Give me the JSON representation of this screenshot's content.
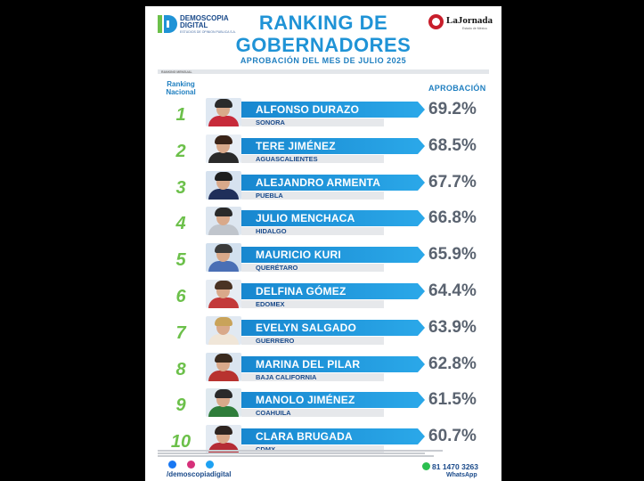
{
  "header": {
    "logo_left_name": "DEMOSCOPIA DIGITAL",
    "logo_left_sub": "ESTUDIOS DE OPINION PUBLICA S.A.",
    "logo_right_name": "LaJornada",
    "logo_right_sub": "Estado de México"
  },
  "chart_data": {
    "type": "bar",
    "title": "RANKING DE GOBERNADORES",
    "title_line1": "RANKING DE",
    "title_line2": "GOBERNADORES",
    "subtitle": "APROBACIÓN DEL MES DE JULIO 2025",
    "small_label": "RANKING MENSUAL",
    "rank_header_line1": "Ranking",
    "rank_header_line2": "Nacional",
    "value_header": "APROBACIÓN",
    "rows": [
      {
        "rank": "1",
        "name": "ALFONSO DURAZO",
        "state": "SONORA",
        "value": 69.2,
        "label": "69.2%"
      },
      {
        "rank": "2",
        "name": "TERE JIMÉNEZ",
        "state": "AGUASCALIENTES",
        "value": 68.5,
        "label": "68.5%"
      },
      {
        "rank": "3",
        "name": "ALEJANDRO ARMENTA",
        "state": "PUEBLA",
        "value": 67.7,
        "label": "67.7%"
      },
      {
        "rank": "4",
        "name": "JULIO MENCHACA",
        "state": "HIDALGO",
        "value": 66.8,
        "label": "66.8%"
      },
      {
        "rank": "5",
        "name": "MAURICIO KURI",
        "state": "QUERÉTARO",
        "value": 65.9,
        "label": "65.9%"
      },
      {
        "rank": "6",
        "name": "DELFINA GÓMEZ",
        "state": "EDOMEX",
        "value": 64.4,
        "label": "64.4%"
      },
      {
        "rank": "7",
        "name": "EVELYN SALGADO",
        "state": "GUERRERO",
        "value": 63.9,
        "label": "63.9%"
      },
      {
        "rank": "8",
        "name": "MARINA DEL PILAR",
        "state": "BAJA CALIFORNIA",
        "value": 62.8,
        "label": "62.8%"
      },
      {
        "rank": "9",
        "name": "MANOLO JIMÉNEZ",
        "state": "COAHUILA",
        "value": 61.5,
        "label": "61.5%"
      },
      {
        "rank": "10",
        "name": "CLARA BRUGADA",
        "state": "CDMX",
        "value": 60.7,
        "label": "60.7%"
      }
    ]
  },
  "photos": [
    {
      "hair": "#2b2b2b",
      "suit": "#c72a3a",
      "bg": "#dfe8f2"
    },
    {
      "hair": "#3a2418",
      "suit": "#2a2a2a",
      "bg": "#e8eef5"
    },
    {
      "hair": "#1e1e1e",
      "suit": "#1f2f5a",
      "bg": "#d6e2ef"
    },
    {
      "hair": "#2a2a2a",
      "suit": "#c0c5cc",
      "bg": "#dde6f0"
    },
    {
      "hair": "#3b3b3b",
      "suit": "#4a6fb5",
      "bg": "#d2e0ee"
    },
    {
      "hair": "#4a3324",
      "suit": "#c33a3a",
      "bg": "#e6ecf3"
    },
    {
      "hair": "#c9a35a",
      "suit": "#f0e6d8",
      "bg": "#e1e9f2"
    },
    {
      "hair": "#3a2a1e",
      "suit": "#b8322f",
      "bg": "#dae5f0"
    },
    {
      "hair": "#2a2a2a",
      "suit": "#2e7d3a",
      "bg": "#dfe9ef"
    },
    {
      "hair": "#2e2420",
      "suit": "#b52c35",
      "bg": "#e3eaf2"
    }
  ],
  "footer": {
    "handle": "/demoscopiadigital",
    "phone": "81 1470 3263",
    "whatsapp": "WhatsApp"
  },
  "colors": {
    "accent_blue": "#1f93d6",
    "rank_green": "#6cc04a",
    "value_gray": "#5a6370"
  }
}
